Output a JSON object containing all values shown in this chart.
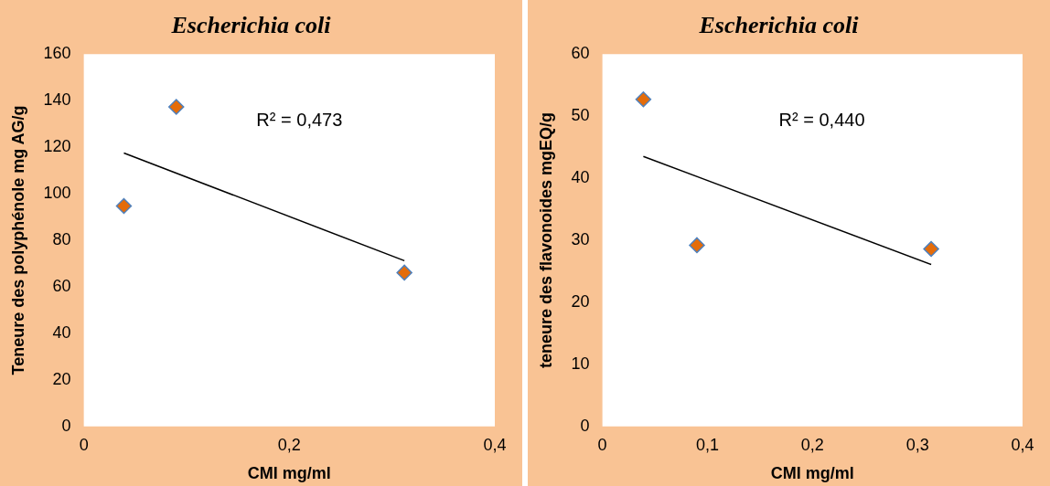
{
  "chart_data": [
    {
      "type": "scatter",
      "title": "Escherichia coli",
      "xlabel": "CMI mg/ml",
      "ylabel": "Teneure des polyphénole mg AG/g",
      "grid": false,
      "legend": false,
      "xlim": [
        0,
        0.4
      ],
      "xticks": [
        0,
        {
          "value": 0.2,
          "label": "0,2"
        },
        {
          "value": 0.4,
          "label": "0,4"
        }
      ],
      "ylim": [
        0,
        160
      ],
      "yticks": [
        0,
        20,
        40,
        60,
        80,
        100,
        120,
        140,
        160
      ],
      "series": [
        {
          "type": "scatter",
          "marker": "diamond",
          "color": "#e46c0a",
          "x": [
            0.039,
            0.09,
            0.312
          ],
          "values": [
            94.7,
            137.3,
            66.1
          ]
        },
        {
          "type": "line",
          "marker": "none",
          "color": "#000000",
          "x": [
            0.039,
            0.312
          ],
          "values": [
            117.5,
            71.2
          ]
        }
      ],
      "annotations": [
        "R² = 0,473"
      ]
    },
    {
      "type": "scatter",
      "title": "Escherichia coli",
      "xlabel": "CMI mg/ml",
      "ylabel": "teneure des flavonoides mgEQ/g",
      "grid": false,
      "legend": false,
      "xlim": [
        0,
        0.4
      ],
      "xticks": [
        0,
        {
          "value": 0.1,
          "label": "0,1"
        },
        {
          "value": 0.2,
          "label": "0,2"
        },
        {
          "value": 0.3,
          "label": "0,3"
        },
        {
          "value": 0.4,
          "label": "0,4"
        }
      ],
      "ylim": [
        0,
        60
      ],
      "yticks": [
        0,
        10,
        20,
        30,
        40,
        50,
        60
      ],
      "series": [
        {
          "type": "scatter",
          "marker": "diamond",
          "color": "#e46c0a",
          "x": [
            0.039,
            0.09,
            0.313
          ],
          "values": [
            52.7,
            29.2,
            28.6
          ]
        },
        {
          "type": "line",
          "marker": "none",
          "color": "#000000",
          "x": [
            0.039,
            0.313
          ],
          "values": [
            43.5,
            26.1
          ]
        }
      ],
      "annotations": [
        "R² = 0,440"
      ]
    }
  ]
}
